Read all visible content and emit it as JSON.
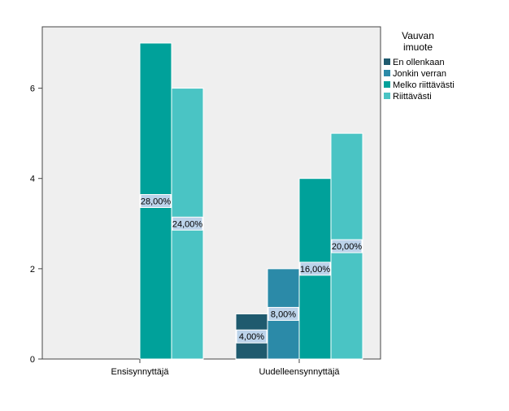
{
  "chart_data": {
    "type": "bar",
    "categories": [
      "Ensisynnyttäjä",
      "Uudelleensynnyttäjä"
    ],
    "ylim": [
      0,
      8
    ],
    "yticks": [
      0,
      2,
      4,
      6
    ],
    "xlabel": "",
    "ylabel": "",
    "grid": false,
    "legend": {
      "title": "Vauvan imuote",
      "position": "right"
    },
    "series": [
      {
        "name": "En ollenkaan",
        "color": "#1f5a6e",
        "values": [
          0,
          1
        ],
        "labels": [
          "",
          "4,00%"
        ]
      },
      {
        "name": "Jonkin verran",
        "color": "#2b8aa8",
        "values": [
          0,
          2
        ],
        "labels": [
          "",
          "8,00%"
        ]
      },
      {
        "name": "Melko riittävästi",
        "color": "#00a19a",
        "values": [
          7,
          4
        ],
        "labels": [
          "28,00%",
          "16,00%"
        ]
      },
      {
        "name": "Riittävästi",
        "color": "#4ac4c4",
        "values": [
          6,
          5
        ],
        "labels": [
          "24,00%",
          "20,00%"
        ]
      }
    ]
  }
}
